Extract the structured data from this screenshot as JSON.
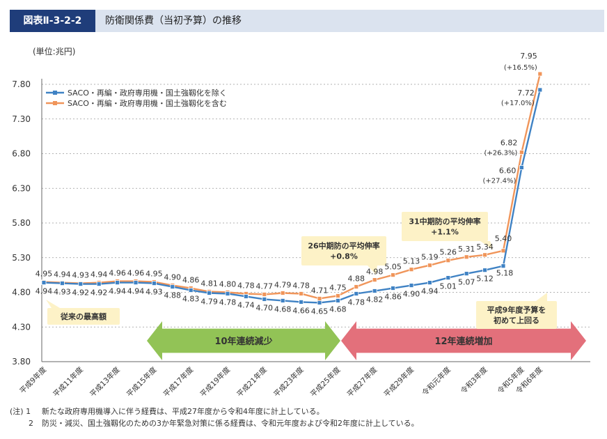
{
  "header": {
    "figure_number": "図表Ⅱ-3-2-2",
    "title": "防衛関係費（当初予算）の推移"
  },
  "chart_data": {
    "type": "line",
    "unit_label": "(単位:兆円)",
    "ylim": [
      3.8,
      7.8
    ],
    "yticks": [
      "3.80",
      "4.30",
      "4.80",
      "5.30",
      "5.80",
      "6.30",
      "6.80",
      "7.30",
      "7.80"
    ],
    "categories": [
      "平成9年度",
      "平成10年度",
      "平成11年度",
      "平成12年度",
      "平成13年度",
      "平成14年度",
      "平成15年度",
      "平成16年度",
      "平成17年度",
      "平成18年度",
      "平成19年度",
      "平成20年度",
      "平成21年度",
      "平成22年度",
      "平成23年度",
      "平成24年度",
      "平成25年度",
      "平成26年度",
      "平成27年度",
      "平成28年度",
      "平成29年度",
      "平成30年度",
      "令和元年度",
      "令和2年度",
      "令和3年度",
      "令和4年度",
      "令和5年度",
      "令和6年度"
    ],
    "x_tick_labels": [
      "平成9年度",
      "",
      "平成11年度",
      "",
      "平成13年度",
      "",
      "平成15年度",
      "",
      "平成17年度",
      "",
      "平成19年度",
      "",
      "平成21年度",
      "",
      "平成23年度",
      "",
      "平成25年度",
      "",
      "平成27年度",
      "",
      "平成29年度",
      "",
      "令和元年度",
      "",
      "令和3年度",
      "",
      "令和5年度",
      "令和6年度"
    ],
    "series": [
      {
        "name": "SACO・再編・政府専用機・国土強靱化を含む",
        "color": "#f0955a",
        "values": [
          4.95,
          4.94,
          4.93,
          4.94,
          4.96,
          4.96,
          4.95,
          4.9,
          4.86,
          4.81,
          4.8,
          4.78,
          4.77,
          4.79,
          4.78,
          4.71,
          4.75,
          4.88,
          4.98,
          5.05,
          5.13,
          5.19,
          5.26,
          5.31,
          5.34,
          5.4,
          6.82,
          7.95
        ],
        "labels": [
          "4.95",
          "4.94",
          "4.93",
          "4.94",
          "4.96",
          "4.96",
          "4.95",
          "4.90",
          "4.86",
          "4.81",
          "4.80",
          "4.78",
          "4.77",
          "4.79",
          "4.78",
          "4.71",
          "4.75",
          "4.88",
          "4.98",
          "5.05",
          "5.13",
          "5.19",
          "5.26",
          "5.31",
          "5.34",
          "5.40",
          "6.82",
          "7.95"
        ]
      },
      {
        "name": "SACO・再編・政府専用機・国土強靱化を除く",
        "color": "#3f82c4",
        "values": [
          4.94,
          4.93,
          4.92,
          4.92,
          4.94,
          4.94,
          4.93,
          4.88,
          4.83,
          4.79,
          4.78,
          4.74,
          4.7,
          4.68,
          4.66,
          4.65,
          4.68,
          4.78,
          4.82,
          4.86,
          4.9,
          4.94,
          5.01,
          5.07,
          5.12,
          5.18,
          6.6,
          7.72
        ],
        "labels": [
          "4.94",
          "4.93",
          "4.92",
          "4.92",
          "4.94",
          "4.94",
          "4.93",
          "4.88",
          "4.83",
          "4.79",
          "4.78",
          "4.74",
          "4.70",
          "4.68",
          "4.66",
          "4.65",
          "4.68",
          "4.78",
          "4.82",
          "4.86",
          "4.90",
          "4.94",
          "5.01",
          "5.07",
          "5.12",
          "5.18",
          "6.60",
          "7.72"
        ]
      }
    ],
    "growth_annotations": {
      "orange_r5": "(+26.3%)",
      "blue_r5": "(+27.4%)",
      "orange_r6": "(+16.5%)",
      "blue_r6": "(+17.0%)"
    },
    "callouts": {
      "peak": "従来の最高額",
      "plan26_line1": "26中期防の平均伸率",
      "plan26_line2": "+0.8%",
      "plan31_line1": "31中期防の平均伸率",
      "plan31_line2": "+1.1%",
      "h9_line1": "平成9年度予算を",
      "h9_line2": "初めて上回る"
    },
    "arrows": {
      "decrease": "10年連続減少",
      "increase": "12年連続増加"
    }
  },
  "notes": {
    "items": [
      {
        "label": "(注) 1",
        "text": "新たな政府専用機導入に伴う経費は、平成27年度から令和4年度に計上している。"
      },
      {
        "label": "2",
        "text": "防災・減災、国土強靱化のための3か年緊急対策に係る経費は、令和元年度および令和2年度に計上している。"
      }
    ]
  }
}
